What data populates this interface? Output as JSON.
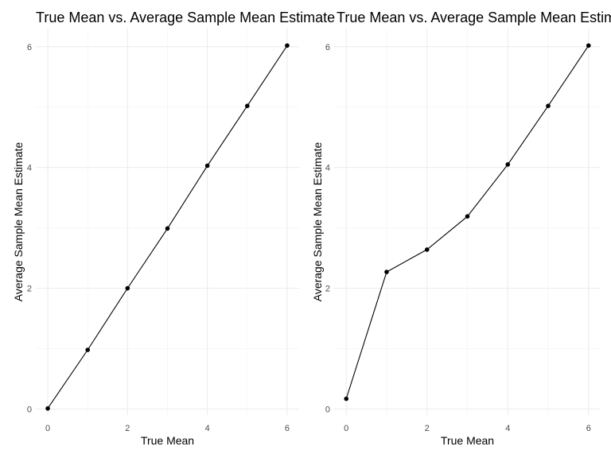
{
  "chart_data": [
    {
      "type": "line",
      "title": "True Mean vs. Average Sample Mean Estimate",
      "xlabel": "True Mean",
      "ylabel": "Average Sample Mean Estimate",
      "x": [
        0,
        1,
        2,
        3,
        4,
        5,
        6
      ],
      "series": [
        {
          "values": [
            0.01,
            0.98,
            2.0,
            2.99,
            4.03,
            5.02,
            6.02
          ]
        }
      ],
      "xlim": [
        -0.3,
        6.3
      ],
      "ylim": [
        -0.1,
        6.3
      ],
      "xticks": [
        0,
        2,
        4,
        6
      ],
      "yticks": [
        0,
        2,
        4,
        6
      ],
      "grid": true,
      "legend": "none"
    },
    {
      "type": "line",
      "title": "True Mean vs. Average Sample Mean Estimate",
      "xlabel": "True Mean",
      "ylabel": "Average Sample Mean Estimate",
      "x": [
        0,
        1,
        2,
        3,
        4,
        5,
        6
      ],
      "series": [
        {
          "values": [
            0.17,
            2.27,
            2.64,
            3.19,
            4.05,
            5.02,
            6.02
          ]
        }
      ],
      "xlim": [
        -0.3,
        6.3
      ],
      "ylim": [
        -0.1,
        6.3
      ],
      "xticks": [
        0,
        2,
        4,
        6
      ],
      "yticks": [
        0,
        2,
        4,
        6
      ],
      "grid": true,
      "legend": "none"
    }
  ]
}
